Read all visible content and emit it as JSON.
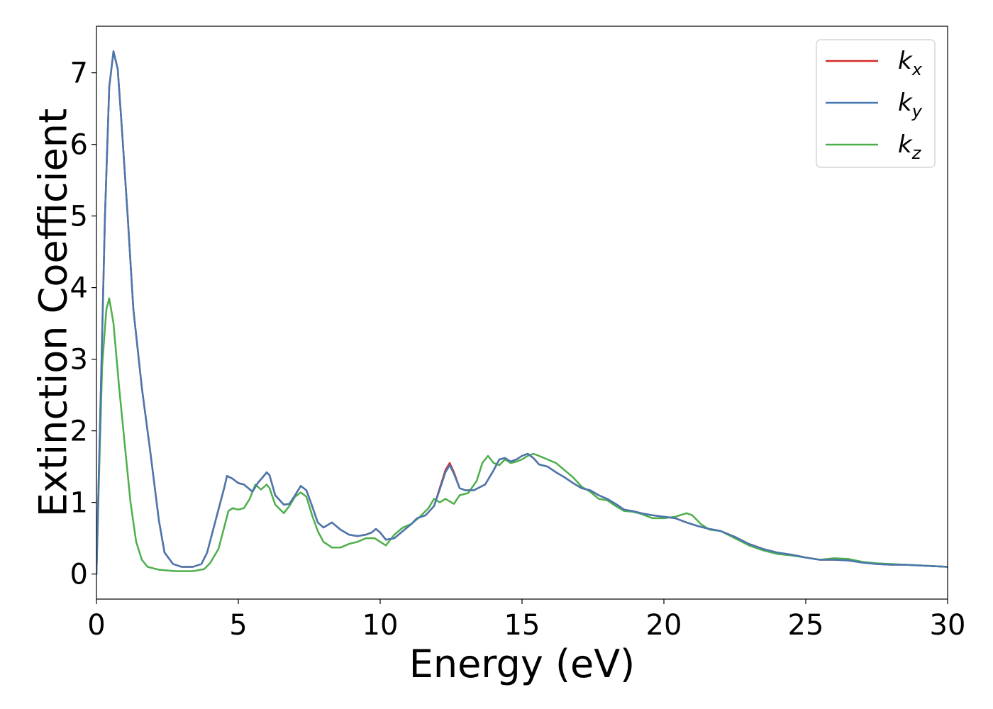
{
  "chart_data": {
    "type": "line",
    "xlabel": "Energy (eV)",
    "ylabel": "Extinction Coefficient",
    "xlim": [
      0,
      30
    ],
    "ylim": [
      -0.35,
      7.65
    ],
    "xticks": [
      "0",
      "5",
      "10",
      "15",
      "20",
      "25",
      "30"
    ],
    "yticks": [
      "0",
      "1",
      "2",
      "3",
      "4",
      "5",
      "6",
      "7"
    ],
    "grid": false,
    "legend_position": "top-right",
    "series": [
      {
        "name": "k",
        "subscript": "x",
        "color": "#d62728",
        "points": [
          [
            0,
            0
          ],
          [
            0.15,
            2.5
          ],
          [
            0.3,
            5.0
          ],
          [
            0.45,
            6.8
          ],
          [
            0.6,
            7.3
          ],
          [
            0.75,
            7.05
          ],
          [
            0.9,
            6.2
          ],
          [
            1.1,
            5.0
          ],
          [
            1.3,
            3.7
          ],
          [
            1.6,
            2.6
          ],
          [
            1.9,
            1.7
          ],
          [
            2.2,
            0.75
          ],
          [
            2.4,
            0.3
          ],
          [
            2.7,
            0.14
          ],
          [
            3.0,
            0.1
          ],
          [
            3.4,
            0.1
          ],
          [
            3.7,
            0.14
          ],
          [
            3.9,
            0.3
          ],
          [
            4.2,
            0.75
          ],
          [
            4.5,
            1.2
          ],
          [
            4.6,
            1.37
          ],
          [
            4.8,
            1.33
          ],
          [
            5.0,
            1.27
          ],
          [
            5.2,
            1.25
          ],
          [
            5.5,
            1.15
          ],
          [
            5.7,
            1.28
          ],
          [
            5.9,
            1.37
          ],
          [
            6.0,
            1.42
          ],
          [
            6.1,
            1.38
          ],
          [
            6.3,
            1.1
          ],
          [
            6.6,
            0.97
          ],
          [
            6.8,
            0.98
          ],
          [
            7.0,
            1.1
          ],
          [
            7.2,
            1.23
          ],
          [
            7.4,
            1.17
          ],
          [
            7.6,
            0.95
          ],
          [
            7.8,
            0.72
          ],
          [
            8.0,
            0.65
          ],
          [
            8.3,
            0.72
          ],
          [
            8.6,
            0.62
          ],
          [
            8.9,
            0.55
          ],
          [
            9.2,
            0.53
          ],
          [
            9.5,
            0.55
          ],
          [
            9.7,
            0.58
          ],
          [
            9.85,
            0.63
          ],
          [
            10.0,
            0.58
          ],
          [
            10.2,
            0.48
          ],
          [
            10.5,
            0.5
          ],
          [
            10.8,
            0.6
          ],
          [
            11.1,
            0.7
          ],
          [
            11.3,
            0.78
          ],
          [
            11.6,
            0.82
          ],
          [
            11.9,
            0.95
          ],
          [
            12.1,
            1.2
          ],
          [
            12.3,
            1.45
          ],
          [
            12.45,
            1.55
          ],
          [
            12.6,
            1.42
          ],
          [
            12.8,
            1.2
          ],
          [
            13.0,
            1.17
          ],
          [
            13.3,
            1.17
          ],
          [
            13.7,
            1.25
          ],
          [
            14.0,
            1.45
          ],
          [
            14.2,
            1.6
          ],
          [
            14.4,
            1.62
          ],
          [
            14.6,
            1.57
          ],
          [
            14.8,
            1.6
          ],
          [
            15.0,
            1.65
          ],
          [
            15.2,
            1.68
          ],
          [
            15.4,
            1.62
          ],
          [
            15.6,
            1.53
          ],
          [
            15.9,
            1.5
          ],
          [
            16.2,
            1.42
          ],
          [
            16.5,
            1.35
          ],
          [
            16.8,
            1.27
          ],
          [
            17.1,
            1.2
          ],
          [
            17.4,
            1.17
          ],
          [
            17.7,
            1.1
          ],
          [
            18.0,
            1.05
          ],
          [
            18.3,
            0.98
          ],
          [
            18.6,
            0.9
          ],
          [
            18.9,
            0.88
          ],
          [
            19.2,
            0.85
          ],
          [
            19.6,
            0.82
          ],
          [
            20.0,
            0.8
          ],
          [
            20.4,
            0.78
          ],
          [
            20.8,
            0.72
          ],
          [
            21.2,
            0.67
          ],
          [
            21.6,
            0.63
          ],
          [
            22.0,
            0.6
          ],
          [
            22.5,
            0.52
          ],
          [
            23.0,
            0.42
          ],
          [
            23.5,
            0.35
          ],
          [
            24.0,
            0.3
          ],
          [
            24.5,
            0.27
          ],
          [
            25.0,
            0.23
          ],
          [
            25.5,
            0.2
          ],
          [
            26.0,
            0.2
          ],
          [
            26.5,
            0.19
          ],
          [
            27.0,
            0.16
          ],
          [
            27.5,
            0.14
          ],
          [
            28.0,
            0.13
          ],
          [
            28.5,
            0.13
          ],
          [
            29.0,
            0.12
          ],
          [
            29.5,
            0.11
          ],
          [
            30.0,
            0.1
          ]
        ]
      },
      {
        "name": "k",
        "subscript": "y",
        "color": "#4878b0",
        "points": [
          [
            0,
            0
          ],
          [
            0.15,
            2.5
          ],
          [
            0.3,
            5.0
          ],
          [
            0.45,
            6.8
          ],
          [
            0.6,
            7.3
          ],
          [
            0.75,
            7.05
          ],
          [
            0.9,
            6.2
          ],
          [
            1.1,
            5.0
          ],
          [
            1.3,
            3.7
          ],
          [
            1.6,
            2.6
          ],
          [
            1.9,
            1.7
          ],
          [
            2.2,
            0.75
          ],
          [
            2.4,
            0.3
          ],
          [
            2.7,
            0.14
          ],
          [
            3.0,
            0.1
          ],
          [
            3.4,
            0.1
          ],
          [
            3.7,
            0.14
          ],
          [
            3.9,
            0.3
          ],
          [
            4.2,
            0.75
          ],
          [
            4.5,
            1.2
          ],
          [
            4.6,
            1.37
          ],
          [
            4.8,
            1.33
          ],
          [
            5.0,
            1.27
          ],
          [
            5.2,
            1.25
          ],
          [
            5.5,
            1.15
          ],
          [
            5.7,
            1.28
          ],
          [
            5.9,
            1.37
          ],
          [
            6.0,
            1.42
          ],
          [
            6.1,
            1.38
          ],
          [
            6.3,
            1.1
          ],
          [
            6.6,
            0.97
          ],
          [
            6.8,
            0.98
          ],
          [
            7.0,
            1.1
          ],
          [
            7.2,
            1.23
          ],
          [
            7.4,
            1.17
          ],
          [
            7.6,
            0.95
          ],
          [
            7.8,
            0.72
          ],
          [
            8.0,
            0.65
          ],
          [
            8.3,
            0.72
          ],
          [
            8.6,
            0.62
          ],
          [
            8.9,
            0.55
          ],
          [
            9.2,
            0.53
          ],
          [
            9.5,
            0.55
          ],
          [
            9.7,
            0.58
          ],
          [
            9.85,
            0.63
          ],
          [
            10.0,
            0.58
          ],
          [
            10.2,
            0.48
          ],
          [
            10.5,
            0.5
          ],
          [
            10.8,
            0.6
          ],
          [
            11.1,
            0.7
          ],
          [
            11.3,
            0.78
          ],
          [
            11.6,
            0.82
          ],
          [
            11.9,
            0.95
          ],
          [
            12.1,
            1.18
          ],
          [
            12.3,
            1.42
          ],
          [
            12.45,
            1.52
          ],
          [
            12.6,
            1.4
          ],
          [
            12.8,
            1.2
          ],
          [
            13.0,
            1.17
          ],
          [
            13.3,
            1.17
          ],
          [
            13.7,
            1.25
          ],
          [
            14.0,
            1.45
          ],
          [
            14.2,
            1.6
          ],
          [
            14.4,
            1.62
          ],
          [
            14.6,
            1.57
          ],
          [
            14.8,
            1.6
          ],
          [
            15.0,
            1.65
          ],
          [
            15.2,
            1.68
          ],
          [
            15.4,
            1.62
          ],
          [
            15.6,
            1.53
          ],
          [
            15.9,
            1.5
          ],
          [
            16.2,
            1.42
          ],
          [
            16.5,
            1.35
          ],
          [
            16.8,
            1.27
          ],
          [
            17.1,
            1.2
          ],
          [
            17.4,
            1.17
          ],
          [
            17.7,
            1.1
          ],
          [
            18.0,
            1.05
          ],
          [
            18.3,
            0.98
          ],
          [
            18.6,
            0.9
          ],
          [
            18.9,
            0.88
          ],
          [
            19.2,
            0.85
          ],
          [
            19.6,
            0.82
          ],
          [
            20.0,
            0.8
          ],
          [
            20.4,
            0.78
          ],
          [
            20.8,
            0.72
          ],
          [
            21.2,
            0.67
          ],
          [
            21.6,
            0.63
          ],
          [
            22.0,
            0.6
          ],
          [
            22.5,
            0.52
          ],
          [
            23.0,
            0.42
          ],
          [
            23.5,
            0.35
          ],
          [
            24.0,
            0.3
          ],
          [
            24.5,
            0.27
          ],
          [
            25.0,
            0.23
          ],
          [
            25.5,
            0.2
          ],
          [
            26.0,
            0.2
          ],
          [
            26.5,
            0.19
          ],
          [
            27.0,
            0.16
          ],
          [
            27.5,
            0.14
          ],
          [
            28.0,
            0.13
          ],
          [
            28.5,
            0.13
          ],
          [
            29.0,
            0.12
          ],
          [
            29.5,
            0.11
          ],
          [
            30.0,
            0.1
          ]
        ]
      },
      {
        "name": "k",
        "subscript": "z",
        "color": "#4daf4a",
        "points": [
          [
            0,
            0
          ],
          [
            0.1,
            1.5
          ],
          [
            0.2,
            2.9
          ],
          [
            0.35,
            3.7
          ],
          [
            0.45,
            3.85
          ],
          [
            0.6,
            3.5
          ],
          [
            0.8,
            2.6
          ],
          [
            1.0,
            1.8
          ],
          [
            1.2,
            1.0
          ],
          [
            1.4,
            0.45
          ],
          [
            1.6,
            0.2
          ],
          [
            1.8,
            0.1
          ],
          [
            2.2,
            0.06
          ],
          [
            2.8,
            0.04
          ],
          [
            3.4,
            0.04
          ],
          [
            3.8,
            0.07
          ],
          [
            4.0,
            0.15
          ],
          [
            4.3,
            0.35
          ],
          [
            4.5,
            0.65
          ],
          [
            4.65,
            0.88
          ],
          [
            4.8,
            0.92
          ],
          [
            5.0,
            0.9
          ],
          [
            5.2,
            0.92
          ],
          [
            5.4,
            1.05
          ],
          [
            5.6,
            1.25
          ],
          [
            5.8,
            1.18
          ],
          [
            6.0,
            1.25
          ],
          [
            6.1,
            1.2
          ],
          [
            6.3,
            0.97
          ],
          [
            6.6,
            0.85
          ],
          [
            6.8,
            0.95
          ],
          [
            7.0,
            1.08
          ],
          [
            7.2,
            1.14
          ],
          [
            7.4,
            1.08
          ],
          [
            7.6,
            0.82
          ],
          [
            7.8,
            0.6
          ],
          [
            8.0,
            0.45
          ],
          [
            8.3,
            0.37
          ],
          [
            8.6,
            0.37
          ],
          [
            8.9,
            0.42
          ],
          [
            9.2,
            0.45
          ],
          [
            9.5,
            0.5
          ],
          [
            9.8,
            0.5
          ],
          [
            10.0,
            0.45
          ],
          [
            10.2,
            0.4
          ],
          [
            10.5,
            0.55
          ],
          [
            10.8,
            0.65
          ],
          [
            11.1,
            0.7
          ],
          [
            11.4,
            0.8
          ],
          [
            11.7,
            0.92
          ],
          [
            11.9,
            1.05
          ],
          [
            12.1,
            1.0
          ],
          [
            12.3,
            1.05
          ],
          [
            12.6,
            0.98
          ],
          [
            12.8,
            1.1
          ],
          [
            13.1,
            1.13
          ],
          [
            13.4,
            1.3
          ],
          [
            13.6,
            1.55
          ],
          [
            13.8,
            1.65
          ],
          [
            14.0,
            1.55
          ],
          [
            14.2,
            1.52
          ],
          [
            14.4,
            1.6
          ],
          [
            14.6,
            1.55
          ],
          [
            14.8,
            1.57
          ],
          [
            15.0,
            1.6
          ],
          [
            15.2,
            1.65
          ],
          [
            15.4,
            1.68
          ],
          [
            15.6,
            1.65
          ],
          [
            15.9,
            1.6
          ],
          [
            16.2,
            1.55
          ],
          [
            16.5,
            1.45
          ],
          [
            16.8,
            1.35
          ],
          [
            17.1,
            1.22
          ],
          [
            17.4,
            1.15
          ],
          [
            17.7,
            1.05
          ],
          [
            18.0,
            1.03
          ],
          [
            18.3,
            0.95
          ],
          [
            18.6,
            0.88
          ],
          [
            18.9,
            0.87
          ],
          [
            19.2,
            0.84
          ],
          [
            19.6,
            0.78
          ],
          [
            20.0,
            0.78
          ],
          [
            20.4,
            0.8
          ],
          [
            20.8,
            0.85
          ],
          [
            21.0,
            0.82
          ],
          [
            21.3,
            0.7
          ],
          [
            21.6,
            0.62
          ],
          [
            22.0,
            0.6
          ],
          [
            22.5,
            0.5
          ],
          [
            23.0,
            0.4
          ],
          [
            23.5,
            0.33
          ],
          [
            24.0,
            0.28
          ],
          [
            24.5,
            0.26
          ],
          [
            25.0,
            0.23
          ],
          [
            25.5,
            0.2
          ],
          [
            26.0,
            0.22
          ],
          [
            26.5,
            0.21
          ],
          [
            27.0,
            0.17
          ],
          [
            27.5,
            0.15
          ],
          [
            28.0,
            0.14
          ],
          [
            28.5,
            0.13
          ],
          [
            29.0,
            0.12
          ],
          [
            29.5,
            0.11
          ],
          [
            30.0,
            0.1
          ]
        ]
      }
    ]
  }
}
